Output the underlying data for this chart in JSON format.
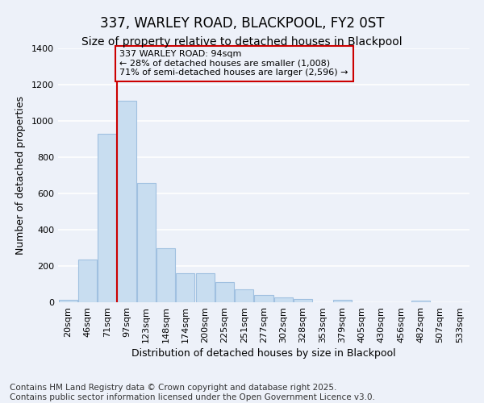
{
  "title": "337, WARLEY ROAD, BLACKPOOL, FY2 0ST",
  "subtitle": "Size of property relative to detached houses in Blackpool",
  "xlabel": "Distribution of detached houses by size in Blackpool",
  "ylabel": "Number of detached properties",
  "footnote": "Contains HM Land Registry data © Crown copyright and database right 2025.\nContains public sector information licensed under the Open Government Licence v3.0.",
  "bar_labels": [
    "20sqm",
    "46sqm",
    "71sqm",
    "97sqm",
    "123sqm",
    "148sqm",
    "174sqm",
    "200sqm",
    "225sqm",
    "251sqm",
    "277sqm",
    "302sqm",
    "328sqm",
    "353sqm",
    "379sqm",
    "405sqm",
    "430sqm",
    "456sqm",
    "482sqm",
    "507sqm",
    "533sqm"
  ],
  "bar_values": [
    15,
    235,
    930,
    1110,
    660,
    300,
    160,
    160,
    110,
    70,
    40,
    25,
    20,
    0,
    15,
    0,
    0,
    0,
    10,
    0,
    0
  ],
  "bar_color": "#c8ddf0",
  "bar_edgecolor": "#a0c0e0",
  "background_color": "#edf1f9",
  "grid_color": "#ffffff",
  "annotation_box_text": "337 WARLEY ROAD: 94sqm\n← 28% of detached houses are smaller (1,008)\n71% of semi-detached houses are larger (2,596) →",
  "annotation_box_color": "#cc0000",
  "ylim": [
    0,
    1400
  ],
  "yticks": [
    0,
    200,
    400,
    600,
    800,
    1000,
    1200,
    1400
  ],
  "title_fontsize": 12,
  "subtitle_fontsize": 10,
  "axis_label_fontsize": 9,
  "tick_fontsize": 8,
  "annotation_fontsize": 8,
  "footnote_fontsize": 7.5
}
